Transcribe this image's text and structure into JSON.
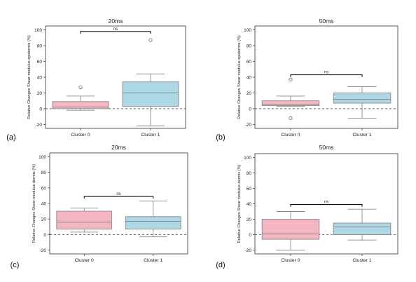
{
  "chart_data": [
    {
      "type": "box",
      "panel_label": "(a)",
      "title": "20ms",
      "ylabel": "Relative Changes Shear modulus epidermis (%)",
      "ylim": [
        -25,
        105
      ],
      "yticks": [
        -20,
        0,
        20,
        40,
        60,
        80,
        100
      ],
      "reference_line": 0,
      "significance": "ns",
      "categories": [
        "Cluster 0",
        "Cluster 1"
      ],
      "colors": [
        "#f4b6c2",
        "#add8e6"
      ],
      "boxes": [
        {
          "whisker_low": -2,
          "q1": 0,
          "median": 2,
          "q3": 9,
          "whisker_high": 16,
          "outliers": [
            27
          ]
        },
        {
          "whisker_low": -22,
          "q1": 3,
          "median": 20,
          "q3": 34,
          "whisker_high": 44,
          "outliers": [
            87
          ]
        }
      ]
    },
    {
      "type": "box",
      "panel_label": "(b)",
      "title": "50ms",
      "ylabel": "Relative Changes Shear modulus epidermis (%)",
      "ylim": [
        -25,
        105
      ],
      "yticks": [
        -20,
        0,
        20,
        40,
        60,
        80,
        100
      ],
      "reference_line": 0,
      "significance": "ns",
      "categories": [
        "Cluster 0",
        "Cluster 1"
      ],
      "colors": [
        "#f4b6c2",
        "#add8e6"
      ],
      "boxes": [
        {
          "whisker_low": 3,
          "q1": 4,
          "median": 5,
          "q3": 10,
          "whisker_high": 16,
          "outliers": [
            37,
            -12
          ]
        },
        {
          "whisker_low": -12,
          "q1": 7,
          "median": 12,
          "q3": 20,
          "whisker_high": 28,
          "outliers": []
        }
      ]
    },
    {
      "type": "box",
      "panel_label": "(c)",
      "title": "20ms",
      "ylabel": "Relative Changes Shear modulus dermis (%)",
      "ylim": [
        -25,
        105
      ],
      "yticks": [
        -20,
        0,
        20,
        40,
        60,
        80,
        100
      ],
      "reference_line": 0,
      "significance": "ns",
      "categories": [
        "Cluster 0",
        "Cluster 1"
      ],
      "colors": [
        "#f4b6c2",
        "#add8e6"
      ],
      "boxes": [
        {
          "whisker_low": 3,
          "q1": 7,
          "median": 16,
          "q3": 30,
          "whisker_high": 34,
          "outliers": []
        },
        {
          "whisker_low": -3,
          "q1": 7,
          "median": 17,
          "q3": 23,
          "whisker_high": 43,
          "outliers": []
        }
      ]
    },
    {
      "type": "box",
      "panel_label": "(d)",
      "title": "50ms",
      "ylabel": "Relative Changes Shear modulus dermis (%)",
      "ylim": [
        -25,
        105
      ],
      "yticks": [
        -20,
        0,
        20,
        40,
        60,
        80,
        100
      ],
      "reference_line": 0,
      "significance": "ns",
      "categories": [
        "Cluster 0",
        "Cluster 1"
      ],
      "colors": [
        "#f4b6c2",
        "#add8e6"
      ],
      "boxes": [
        {
          "whisker_low": -20,
          "q1": -6,
          "median": 1,
          "q3": 20,
          "whisker_high": 30,
          "outliers": []
        },
        {
          "whisker_low": -7,
          "q1": 0,
          "median": 10,
          "q3": 15,
          "whisker_high": 33,
          "outliers": []
        }
      ]
    }
  ]
}
